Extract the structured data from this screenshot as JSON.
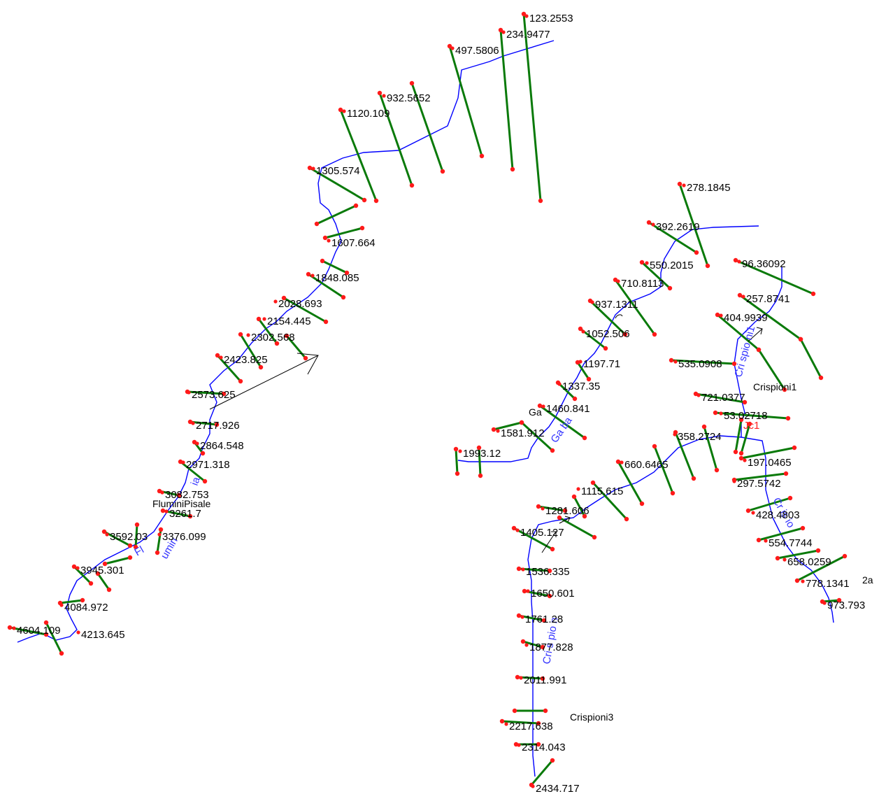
{
  "reaches": [
    {
      "name": "Flumini Pisale",
      "stations": [
        "123.2553",
        "234.9477",
        "497.5806",
        "932.5652",
        "1120.109",
        "1305.574",
        "1607.664",
        "1848.085",
        "2028.693",
        "2154.445",
        "2302.568",
        "2423.825",
        "2573.625",
        "2717.926",
        "2864.548",
        "2971.318",
        "3082.753",
        "3261.7",
        "3376.099",
        "3592.03",
        "3945.301",
        "4084.972",
        "4213.645",
        "4604.109"
      ]
    },
    {
      "name": "Gabba",
      "stations": [
        "278.1845",
        "392.2619",
        "550.2015",
        "710.8113",
        "937.1311",
        "1052.506",
        "1197.71",
        "1337.35",
        "1460.841",
        "1581.912",
        "1993.12"
      ]
    },
    {
      "name": "Crispioni",
      "stations": [
        "96.36092",
        "257.8741",
        "404.9939",
        "535.0908",
        "721.0377",
        "53.02718",
        "358.2724",
        "660.6465",
        "1115.615",
        "1281.606",
        "1405.127",
        "1536.335",
        "1650.601",
        "1761.28",
        "1877.828",
        "2011.991",
        "2217.638",
        "2314.043",
        "2434.717",
        "197.0465",
        "297.5742",
        "428.4803",
        "554.7744",
        "658.0259",
        "778.1341",
        "973.793"
      ]
    }
  ],
  "reach_labels": {
    "flumini_pisale": "FluminiPisale",
    "crispioni1": "Crispioni1",
    "crispioni3": "Crispioni3",
    "gabba_partial": "Ga",
    "crispioni2a_partial": "2a"
  },
  "junction_label": "Jc1",
  "river_text": {
    "flumini_lower": "Fl",
    "flumini_mid": "umin",
    "flumini_up": "ia",
    "gabba": "Ga ba",
    "crispioni1": "Cri spio ni1",
    "crispioni3": "Cri s pio n",
    "crispioni2": "Cr is io"
  },
  "colors": {
    "cross_section": "#0a7a0a",
    "centerline": "#0000ff",
    "bank_point": "#ff1a1a",
    "junction": "#ff2020",
    "river_name": "#3333ff",
    "flow_arrow": "#000000"
  }
}
